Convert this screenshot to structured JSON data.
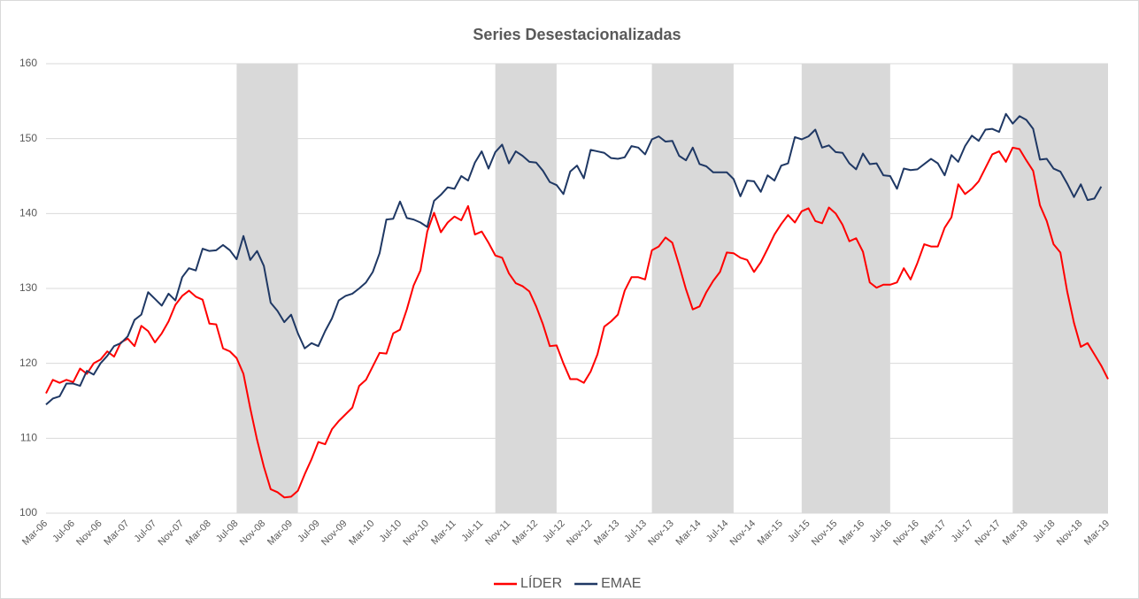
{
  "chart_data": {
    "type": "line",
    "title": "Series Desestacionalizadas",
    "categories": [
      "Mar-06",
      null,
      null,
      null,
      "Jul-06",
      null,
      null,
      null,
      "Nov-06",
      null,
      null,
      null,
      "Mar-07",
      null,
      null,
      null,
      "Jul-07",
      null,
      null,
      null,
      "Nov-07",
      null,
      null,
      null,
      "Mar-08",
      null,
      null,
      null,
      "Jul-08",
      null,
      null,
      null,
      "Nov-08",
      null,
      null,
      null,
      "Mar-09",
      null,
      null,
      null,
      "Jul-09",
      null,
      null,
      null,
      "Nov-09",
      null,
      null,
      null,
      "Mar-10",
      null,
      null,
      null,
      "Jul-10",
      null,
      null,
      null,
      "Nov-10",
      null,
      null,
      null,
      "Mar-11",
      null,
      null,
      null,
      "Jul-11",
      null,
      null,
      null,
      "Nov-11",
      null,
      null,
      null,
      "Mar-12",
      null,
      null,
      null,
      "Jul-12",
      null,
      null,
      null,
      "Nov-12",
      null,
      null,
      null,
      "Mar-13",
      null,
      null,
      null,
      "Jul-13",
      null,
      null,
      null,
      "Nov-13",
      null,
      null,
      null,
      "Mar-14",
      null,
      null,
      null,
      "Jul-14",
      null,
      null,
      null,
      "Nov-14",
      null,
      null,
      null,
      "Mar-15",
      null,
      null,
      null,
      "Jul-15",
      null,
      null,
      null,
      "Nov-15",
      null,
      null,
      null,
      "Mar-16",
      null,
      null,
      null,
      "Jul-16",
      null,
      null,
      null,
      "Nov-16",
      null,
      null,
      null,
      "Mar-17",
      null,
      null,
      null,
      "Jul-17",
      null,
      null,
      null,
      "Nov-17",
      null,
      null,
      null,
      "Mar-18",
      null,
      null,
      null,
      "Jul-18",
      null,
      null,
      null,
      "Nov-18",
      null,
      null,
      null,
      "Mar-19"
    ],
    "series": [
      {
        "name": "LÍDER",
        "color": "#ff0000",
        "values": [
          116.0,
          117.8,
          117.4,
          117.8,
          117.5,
          119.3,
          118.6,
          120.0,
          120.5,
          121.6,
          120.9,
          122.8,
          123.3,
          122.3,
          125.0,
          124.3,
          122.8,
          124.0,
          125.6,
          127.8,
          129.0,
          129.7,
          128.9,
          128.5,
          125.3,
          125.2,
          122.0,
          121.6,
          120.7,
          118.6,
          114.0,
          109.8,
          106.2,
          103.2,
          102.8,
          102.1,
          102.2,
          103.0,
          105.2,
          107.2,
          109.5,
          109.2,
          111.2,
          112.3,
          113.2,
          114.1,
          117.0,
          117.8,
          119.6,
          121.4,
          121.3,
          124.0,
          124.5,
          127.2,
          130.4,
          132.4,
          137.6,
          140.1,
          137.5,
          138.8,
          139.6,
          139.1,
          141.0,
          137.2,
          137.6,
          136.1,
          134.4,
          134.1,
          132.0,
          130.7,
          130.3,
          129.6,
          127.6,
          125.2,
          122.3,
          122.4,
          120.0,
          117.9,
          117.9,
          117.4,
          118.9,
          121.2,
          124.9,
          125.6,
          126.5,
          129.7,
          131.5,
          131.5,
          131.2,
          135.1,
          135.6,
          136.8,
          136.1,
          133.1,
          129.9,
          127.2,
          127.6,
          129.5,
          131.0,
          132.2,
          134.8,
          134.7,
          134.1,
          133.8,
          132.2,
          133.5,
          135.3,
          137.2,
          138.6,
          139.8,
          138.8,
          140.3,
          140.7,
          139.0,
          138.7,
          140.8,
          140.0,
          138.5,
          136.3,
          136.7,
          134.9,
          130.8,
          130.1,
          130.5,
          130.5,
          130.8,
          132.7,
          131.2,
          133.4,
          135.9,
          135.6,
          135.6,
          138.1,
          139.5,
          143.9,
          142.6,
          143.3,
          144.3,
          146.1,
          147.9,
          148.3,
          146.9,
          148.8,
          148.6,
          147.1,
          145.7,
          141.1,
          139.0,
          135.9,
          134.8,
          129.6,
          125.4,
          122.2,
          122.7,
          121.2,
          119.7,
          117.9
        ]
      },
      {
        "name": "EMAE",
        "color": "#1f3864",
        "values": [
          114.5,
          115.3,
          115.6,
          117.3,
          117.3,
          117.0,
          119.0,
          118.5,
          120.0,
          121.0,
          122.3,
          122.7,
          123.6,
          125.8,
          126.5,
          129.5,
          128.6,
          127.7,
          129.3,
          128.4,
          131.5,
          132.7,
          132.4,
          135.3,
          135.0,
          135.1,
          135.8,
          135.1,
          133.9,
          137.0,
          133.8,
          135.0,
          133.0,
          128.1,
          127.0,
          125.5,
          126.5,
          124.0,
          122.0,
          122.7,
          122.3,
          124.3,
          126.0,
          128.4,
          129.0,
          129.3,
          130.0,
          130.8,
          132.2,
          134.7,
          139.2,
          139.3,
          141.6,
          139.4,
          139.2,
          138.8,
          138.2,
          141.7,
          142.5,
          143.5,
          143.3,
          145.0,
          144.4,
          146.8,
          148.3,
          146.0,
          148.2,
          149.2,
          146.7,
          148.3,
          147.7,
          146.9,
          146.8,
          145.7,
          144.2,
          143.8,
          142.6,
          145.6,
          146.4,
          144.7,
          148.5,
          148.3,
          148.1,
          147.4,
          147.3,
          147.5,
          149.0,
          148.8,
          147.9,
          149.9,
          150.3,
          149.6,
          149.7,
          147.7,
          147.1,
          148.8,
          146.6,
          146.3,
          145.5,
          145.5,
          145.5,
          144.6,
          142.3,
          144.4,
          144.3,
          142.9,
          145.1,
          144.4,
          146.4,
          146.7,
          150.2,
          149.9,
          150.3,
          151.2,
          148.8,
          149.1,
          148.2,
          148.1,
          146.7,
          145.9,
          148.0,
          146.6,
          146.7,
          145.1,
          145.0,
          143.3,
          146.0,
          145.8,
          145.9,
          146.6,
          147.3,
          146.7,
          145.1,
          147.8,
          146.9,
          149.0,
          150.4,
          149.7,
          151.2,
          151.3,
          150.9,
          153.3,
          152.0,
          153.0,
          152.5,
          151.3,
          147.2,
          147.3,
          146.0,
          145.6,
          144.0,
          142.2,
          143.9,
          141.8,
          142.0,
          143.6,
          null
        ]
      }
    ],
    "highlight_ranges": [
      [
        28,
        37
      ],
      [
        66,
        75
      ],
      [
        89,
        101
      ],
      [
        111,
        124
      ],
      [
        142,
        156
      ]
    ],
    "highlight_color": "#d9d9d9",
    "ylim": [
      100,
      160
    ],
    "yticks": [
      100,
      110,
      120,
      130,
      140,
      150,
      160
    ],
    "grid": true,
    "legend": "bottom"
  }
}
